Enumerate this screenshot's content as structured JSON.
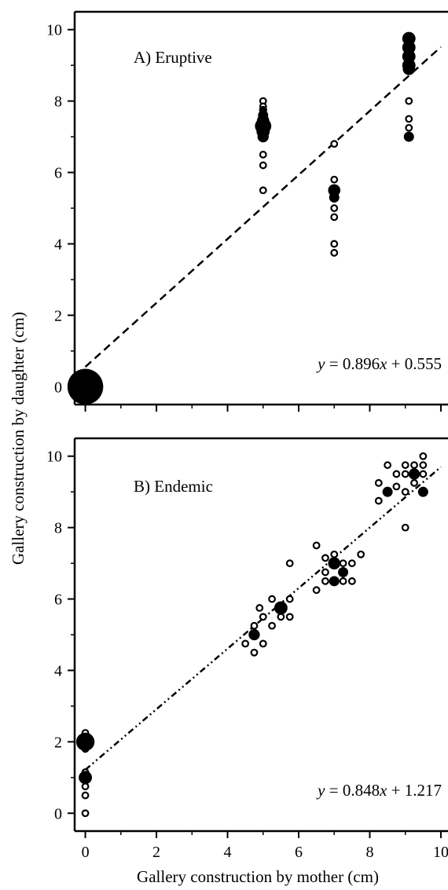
{
  "figure": {
    "shared_ylabel": "Gallery construction by daughter (cm)",
    "shared_xlabel": "Gallery construction by mother (cm)"
  },
  "chart_data": [
    {
      "type": "scatter",
      "panel": "A) Eruptive",
      "xlabel": "",
      "ylabel": "",
      "xlim": [
        -0.3,
        10.2
      ],
      "ylim": [
        -0.5,
        10.5
      ],
      "x_ticks": [
        0,
        2,
        4,
        6,
        8,
        10
      ],
      "y_ticks": [
        0,
        2,
        4,
        6,
        8,
        10
      ],
      "x_tick_labels_shown": false,
      "equation": {
        "lhs": "y",
        "middle": " = 0.896",
        "var": "x",
        "rest": " + 0.555"
      },
      "regression": {
        "slope": 0.896,
        "intercept": 0.555,
        "style": "dashed",
        "x_range": [
          0,
          10
        ]
      },
      "series": [
        {
          "name": "",
          "marker": "filled",
          "points": [
            {
              "x": 0,
              "y": 0,
              "size": 3.5
            },
            {
              "x": 5,
              "y": 7.0,
              "size": 1.1
            },
            {
              "x": 5,
              "y": 7.15,
              "size": 1.3
            },
            {
              "x": 5,
              "y": 7.3,
              "size": 1.6
            },
            {
              "x": 5,
              "y": 7.45,
              "size": 1.2
            },
            {
              "x": 5,
              "y": 7.6,
              "size": 1.0
            },
            {
              "x": 5,
              "y": 7.75,
              "size": 0.8
            },
            {
              "x": 7,
              "y": 5.3,
              "size": 1.0
            },
            {
              "x": 7,
              "y": 5.5,
              "size": 1.2
            },
            {
              "x": 9.1,
              "y": 7.0,
              "size": 1.0
            },
            {
              "x": 9.1,
              "y": 8.9,
              "size": 1.2
            },
            {
              "x": 9.1,
              "y": 9.0,
              "size": 1.3
            },
            {
              "x": 9.1,
              "y": 9.25,
              "size": 1.3
            },
            {
              "x": 9.1,
              "y": 9.5,
              "size": 1.3
            },
            {
              "x": 9.1,
              "y": 9.75,
              "size": 1.3
            }
          ]
        },
        {
          "name": "",
          "marker": "open",
          "points": [
            {
              "x": 5,
              "y": 5.5
            },
            {
              "x": 5,
              "y": 6.2
            },
            {
              "x": 5,
              "y": 6.5
            },
            {
              "x": 5,
              "y": 8.0
            },
            {
              "x": 5,
              "y": 7.85
            },
            {
              "x": 7,
              "y": 6.8
            },
            {
              "x": 7,
              "y": 5.8
            },
            {
              "x": 7,
              "y": 5.0
            },
            {
              "x": 7,
              "y": 4.75
            },
            {
              "x": 7,
              "y": 4.0
            },
            {
              "x": 7,
              "y": 3.75
            },
            {
              "x": 9.1,
              "y": 8.0
            },
            {
              "x": 9.1,
              "y": 7.5
            },
            {
              "x": 9.1,
              "y": 7.25
            }
          ]
        }
      ]
    },
    {
      "type": "scatter",
      "panel": "B) Endemic",
      "xlabel": "Gallery construction by mother (cm)",
      "ylabel": "",
      "xlim": [
        -0.3,
        10.2
      ],
      "ylim": [
        -0.5,
        10.5
      ],
      "x_ticks": [
        0,
        2,
        4,
        6,
        8,
        10
      ],
      "y_ticks": [
        0,
        2,
        4,
        6,
        8,
        10
      ],
      "x_tick_labels_shown": true,
      "equation": {
        "lhs": "y",
        "middle": " = 0.848",
        "var": "x",
        "rest": " + 1.217"
      },
      "regression": {
        "slope": 0.848,
        "intercept": 1.217,
        "style": "dash-dot-dot",
        "x_range": [
          0,
          10
        ]
      },
      "series": [
        {
          "name": "",
          "marker": "filled",
          "points": [
            {
              "x": 0,
              "y": 2.0,
              "size": 1.8
            },
            {
              "x": 0,
              "y": 1.0,
              "size": 1.3
            },
            {
              "x": 4.75,
              "y": 5.0,
              "size": 1.1
            },
            {
              "x": 5.5,
              "y": 5.75,
              "size": 1.3
            },
            {
              "x": 7.0,
              "y": 7.0,
              "size": 1.2
            },
            {
              "x": 7.0,
              "y": 6.5,
              "size": 1.0
            },
            {
              "x": 7.25,
              "y": 6.75,
              "size": 1.0
            },
            {
              "x": 8.5,
              "y": 9.0,
              "size": 1.0
            },
            {
              "x": 9.25,
              "y": 9.5,
              "size": 1.1
            },
            {
              "x": 9.5,
              "y": 9.0,
              "size": 1.0
            }
          ]
        },
        {
          "name": "",
          "marker": "open",
          "points": [
            {
              "x": 0,
              "y": 0.0
            },
            {
              "x": 0,
              "y": 0.5
            },
            {
              "x": 0,
              "y": 0.75
            },
            {
              "x": 0,
              "y": 1.15
            },
            {
              "x": 0,
              "y": 1.8
            },
            {
              "x": 0,
              "y": 2.25
            },
            {
              "x": -0.1,
              "y": 2.0
            },
            {
              "x": 0.1,
              "y": 2.0
            },
            {
              "x": 4.5,
              "y": 4.75
            },
            {
              "x": 4.75,
              "y": 4.5
            },
            {
              "x": 4.75,
              "y": 5.25
            },
            {
              "x": 5.0,
              "y": 4.75
            },
            {
              "x": 5.0,
              "y": 5.5
            },
            {
              "x": 4.9,
              "y": 5.75
            },
            {
              "x": 5.25,
              "y": 5.25
            },
            {
              "x": 5.25,
              "y": 6.0
            },
            {
              "x": 5.5,
              "y": 5.5
            },
            {
              "x": 5.75,
              "y": 6.0
            },
            {
              "x": 5.75,
              "y": 5.5
            },
            {
              "x": 5.75,
              "y": 7.0
            },
            {
              "x": 6.5,
              "y": 6.25
            },
            {
              "x": 6.5,
              "y": 7.5
            },
            {
              "x": 6.75,
              "y": 6.75
            },
            {
              "x": 6.75,
              "y": 7.15
            },
            {
              "x": 6.75,
              "y": 6.5
            },
            {
              "x": 7.0,
              "y": 7.25
            },
            {
              "x": 7.25,
              "y": 6.5
            },
            {
              "x": 7.5,
              "y": 6.5
            },
            {
              "x": 7.5,
              "y": 7.0
            },
            {
              "x": 7.75,
              "y": 7.25
            },
            {
              "x": 7.25,
              "y": 7.0
            },
            {
              "x": 8.25,
              "y": 8.75
            },
            {
              "x": 8.25,
              "y": 9.25
            },
            {
              "x": 8.5,
              "y": 9.75
            },
            {
              "x": 8.75,
              "y": 9.5
            },
            {
              "x": 8.75,
              "y": 9.15
            },
            {
              "x": 9.0,
              "y": 8.0
            },
            {
              "x": 9.0,
              "y": 9.0
            },
            {
              "x": 9.0,
              "y": 9.5
            },
            {
              "x": 9.0,
              "y": 9.75
            },
            {
              "x": 9.25,
              "y": 9.25
            },
            {
              "x": 9.25,
              "y": 9.75
            },
            {
              "x": 9.5,
              "y": 9.5
            },
            {
              "x": 9.5,
              "y": 9.75
            },
            {
              "x": 9.5,
              "y": 10.0
            }
          ]
        }
      ]
    }
  ]
}
